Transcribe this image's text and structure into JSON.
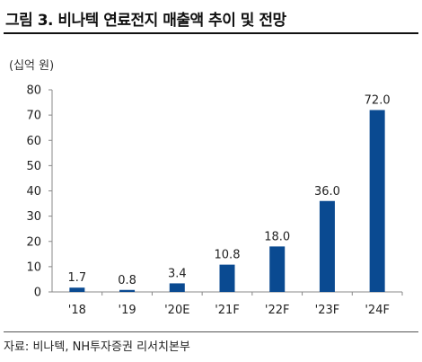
{
  "title": "그림 3. 비나텍 연료전지 매출액 추이 및 전망",
  "unit_label": "(십억 원)",
  "source": {
    "label": "자료:",
    "text": "비나텍, NH투자증권 리서치본부"
  },
  "colors": {
    "bar": "#0a4a91",
    "axis": "#888888",
    "text": "#222222"
  },
  "chart_data": {
    "type": "bar",
    "categories": [
      "'18",
      "'19",
      "'20E",
      "'21F",
      "'22F",
      "'23F",
      "'24F"
    ],
    "values": [
      1.7,
      0.8,
      3.4,
      10.8,
      18.0,
      36.0,
      72.0
    ],
    "value_labels": [
      "1.7",
      "0.8",
      "3.4",
      "10.8",
      "18.0",
      "36.0",
      "72.0"
    ],
    "yticks": [
      "0",
      "10",
      "20",
      "30",
      "40",
      "50",
      "60",
      "70",
      "80"
    ],
    "ylim": [
      0,
      80
    ],
    "ylabel": "(십억 원)",
    "grid": false,
    "legend": "none"
  }
}
